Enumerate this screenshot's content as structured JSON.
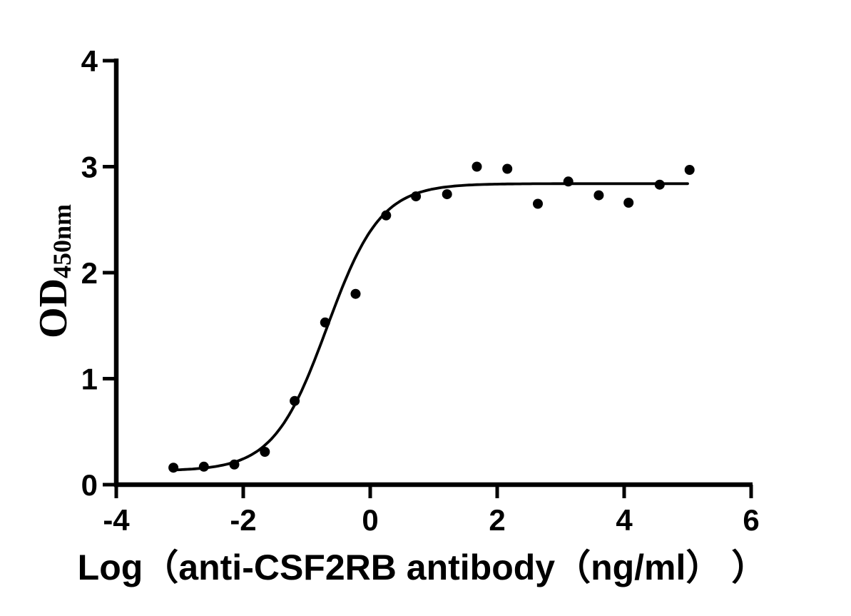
{
  "page": {
    "background_color": "#ffffff",
    "foreground_color": "#000000"
  },
  "chart_data": {
    "type": "scatter",
    "title": "",
    "xlabel": "Log（anti-CSF2RB antibody（ng/ml） ）",
    "ylabel_main": "OD",
    "ylabel_sub": "450nm",
    "xlim": [
      -4,
      6
    ],
    "ylim": [
      0,
      4
    ],
    "x_ticks": [
      -4,
      -2,
      0,
      2,
      4,
      6
    ],
    "x_tick_labels": [
      "-4",
      "-2",
      "0",
      "2",
      "4",
      "6"
    ],
    "y_ticks": [
      0,
      1,
      2,
      3,
      4
    ],
    "y_tick_labels": [
      "0",
      "1",
      "2",
      "3",
      "4"
    ],
    "grid": false,
    "legend": null,
    "marker_color": "#000000",
    "curve_color": "#000000",
    "points": [
      {
        "x": -3.1,
        "y": 0.16
      },
      {
        "x": -2.62,
        "y": 0.17
      },
      {
        "x": -2.14,
        "y": 0.19
      },
      {
        "x": -1.66,
        "y": 0.31
      },
      {
        "x": -1.19,
        "y": 0.79
      },
      {
        "x": -0.71,
        "y": 1.53
      },
      {
        "x": -0.23,
        "y": 1.8
      },
      {
        "x": 0.25,
        "y": 2.54
      },
      {
        "x": 0.72,
        "y": 2.72
      },
      {
        "x": 1.21,
        "y": 2.74
      },
      {
        "x": 1.68,
        "y": 3.0
      },
      {
        "x": 2.16,
        "y": 2.98
      },
      {
        "x": 2.64,
        "y": 2.65
      },
      {
        "x": 3.12,
        "y": 2.86
      },
      {
        "x": 3.6,
        "y": 2.73
      },
      {
        "x": 4.07,
        "y": 2.66
      },
      {
        "x": 4.56,
        "y": 2.83
      },
      {
        "x": 5.03,
        "y": 2.97
      }
    ],
    "fit_curve": {
      "type": "4pl",
      "bottom": 0.13,
      "top": 2.84,
      "logec50": -0.68,
      "hill": 1.03,
      "x_start": -3.12,
      "x_end": 5.03
    }
  }
}
